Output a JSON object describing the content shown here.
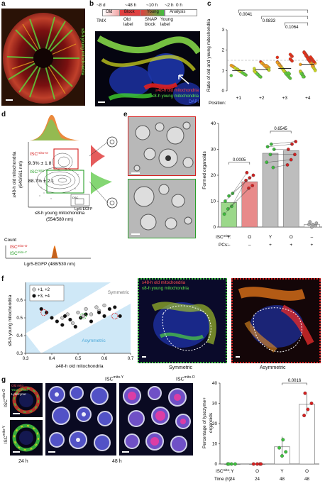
{
  "panel_labels": {
    "a": "a",
    "b": "b",
    "c": "c",
    "d": "d",
    "e": "e",
    "f": "f",
    "g": "g"
  },
  "a": {
    "side_label": "≤8-h young mitochondria"
  },
  "b": {
    "timeline": {
      "tmx": "TMX",
      "t1": "~8 d",
      "t2": "~48 h",
      "t3": "~10 h",
      "t4": "~2 h",
      "t5": "0 h",
      "old": "Old",
      "block": "Block",
      "young": "Young",
      "analysis": "Analysis",
      "old_label": "Old\nlabel",
      "snap_block": "SNAP\nblock",
      "young_label": "Young\nlabel"
    },
    "legend": {
      "old": "≥48-h old mitochondria",
      "young": "≤8-h young mitochondria",
      "dapi": "DAPI"
    }
  },
  "c": {
    "ylabel": "Ratio of old and young mitochondria",
    "xlabel": "Position:",
    "pvals": [
      "0.0041",
      "0.0833",
      "0.1064"
    ]
  },
  "d": {
    "gate_o": "ISC",
    "gate_o_sup": "mito-O",
    "pct_o": "9.3% ± 1.8",
    "gate_y": "ISC",
    "gate_y_sup": "mito-Y",
    "pct_y": "88.7% ± 2.1",
    "ylabel": "≥48-h old mitochondria\n(640/661 nm)",
    "xlabel": "≤8-h young mitochondria\n(554/580 nm)",
    "inset_sub": "DSC",
    "inset_gfp": "Lgr5-EGFP",
    "count_label": "Count",
    "hist_xlabel": "Lgr5-EGFP (488/530 nm)",
    "hist_o": "ISC",
    "hist_o_sup": "mito-O",
    "hist_y": "ISC",
    "hist_y_sup": "mito-Y"
  },
  "e": {
    "ylabel": "Formed organoids",
    "pvals": [
      "0.0005",
      "0.6545"
    ],
    "isc_label": "ISC",
    "isc_sup": "mito",
    "pcs_label": "PCs:",
    "isc_vals": [
      "Y",
      "O",
      "Y",
      "O",
      "–"
    ],
    "pcs_vals": [
      "–",
      "–",
      "+",
      "+",
      "+"
    ]
  },
  "f": {
    "legend": [
      "+1, +2",
      "+3, +4"
    ],
    "symmetric": "Symmetric",
    "asymmetric": "Asymmetric",
    "xlabel": "≥48-h old mitochondria",
    "ylabel": "≤8-h young mitochondria",
    "img_legend_old": "≥48-h old mitochondria",
    "img_legend_young": "≤8-h young mitochondria",
    "img_sym": "Symmetric",
    "img_asym": "Asymmetric"
  },
  "g": {
    "title_y": "ISC",
    "title_y_sup": "mito-Y",
    "title_o": "ISC",
    "title_o_sup": "mito-O",
    "row_o": "ISC",
    "row_o_sup": "mito-O",
    "row_y": "ISC",
    "row_y_sup": "mito-Y",
    "t24": "24 h",
    "t48": "48 h",
    "legend": [
      "Old mito",
      "Young mito",
      "Lysozyme"
    ],
    "ylabel": "Percentage of lysozyme+\norganoids",
    "pval": "0.0016",
    "isc_label": "ISC",
    "isc_sup": "mito",
    "time_label": "Time (h):",
    "isc_vals": [
      "Y",
      "O",
      "Y",
      "O"
    ],
    "time_vals": [
      "24",
      "24",
      "48",
      "48"
    ]
  },
  "chart_data": [
    {
      "panel": "c",
      "type": "scatter",
      "ylabel": "Ratio of old and young mitochondria",
      "xlabel": "Position:",
      "categories": [
        "+1",
        "+2",
        "+3",
        "+4"
      ],
      "ylim": [
        0,
        3
      ],
      "yticks": [
        0,
        1,
        2,
        3
      ],
      "means": [
        1.0,
        1.05,
        1.1,
        1.3
      ],
      "reference_line": 1.5,
      "pvalues": [
        {
          "pair": [
            "+1",
            "+4"
          ],
          "p": "0.0041"
        },
        {
          "pair": [
            "+2",
            "+4"
          ],
          "p": "0.0833"
        },
        {
          "pair": [
            "+3",
            "+4"
          ],
          "p": "0.1064"
        }
      ]
    },
    {
      "panel": "e",
      "type": "bar",
      "ylabel": "Formed organoids",
      "ylim": [
        0,
        40
      ],
      "yticks": [
        0,
        10,
        20,
        30,
        40
      ],
      "categories": [
        "Y/–",
        "O/–",
        "Y/+",
        "O/+",
        "–/+"
      ],
      "values": [
        9.5,
        17.5,
        28.5,
        29.5,
        1
      ],
      "points": [
        [
          5,
          7,
          8,
          10,
          12,
          13
        ],
        [
          15,
          16,
          18,
          19,
          20,
          21
        ],
        [
          23,
          25,
          28,
          30,
          31,
          32
        ],
        [
          24,
          26,
          28,
          30,
          32,
          33
        ],
        [
          0,
          0.5,
          1,
          1,
          1.5,
          2
        ]
      ],
      "pvalues": [
        {
          "pair": [
            "Y/–",
            "O/–"
          ],
          "p": "0.0005"
        },
        {
          "pair": [
            "Y/+",
            "O/+"
          ],
          "p": "0.6545"
        }
      ]
    },
    {
      "panel": "f",
      "type": "scatter",
      "xlabel": "≥48-h old mitochondria",
      "ylabel": "≤8-h young mitochondria",
      "xlim": [
        0.3,
        0.7
      ],
      "ylim": [
        0.3,
        0.7
      ],
      "xticks": [
        0.3,
        0.4,
        0.5,
        0.6,
        0.7
      ],
      "yticks": [
        0.3,
        0.4,
        0.5,
        0.6
      ],
      "series": [
        {
          "name": "+1, +2",
          "x": [
            0.44,
            0.46,
            0.48,
            0.5,
            0.52,
            0.53,
            0.55,
            0.57,
            0.58,
            0.6
          ],
          "y": [
            0.5,
            0.52,
            0.47,
            0.53,
            0.51,
            0.55,
            0.52,
            0.56,
            0.54,
            0.57
          ]
        },
        {
          "name": "+3, +4",
          "x": [
            0.36,
            0.38,
            0.4,
            0.42,
            0.44,
            0.45,
            0.47,
            0.49,
            0.51,
            0.53,
            0.55,
            0.58,
            0.6,
            0.62,
            0.64,
            0.66
          ],
          "y": [
            0.55,
            0.53,
            0.5,
            0.48,
            0.46,
            0.51,
            0.49,
            0.45,
            0.5,
            0.52,
            0.48,
            0.53,
            0.51,
            0.55,
            0.56,
            0.51
          ]
        }
      ]
    },
    {
      "panel": "g",
      "type": "bar",
      "ylabel": "Percentage of lysozyme+ organoids",
      "ylim": [
        0,
        40
      ],
      "yticks": [
        0,
        10,
        20,
        30,
        40
      ],
      "categories": [
        "Y/24",
        "O/24",
        "Y/48",
        "O/48"
      ],
      "values": [
        0,
        0,
        8.5,
        29.5
      ],
      "points": [
        [
          0,
          0,
          0,
          0
        ],
        [
          0,
          0,
          0,
          0
        ],
        [
          4,
          6,
          8,
          12
        ],
        [
          24,
          27,
          30,
          35
        ]
      ],
      "pvalues": [
        {
          "pair": [
            "Y/48",
            "O/48"
          ],
          "p": "0.0016"
        }
      ]
    }
  ]
}
